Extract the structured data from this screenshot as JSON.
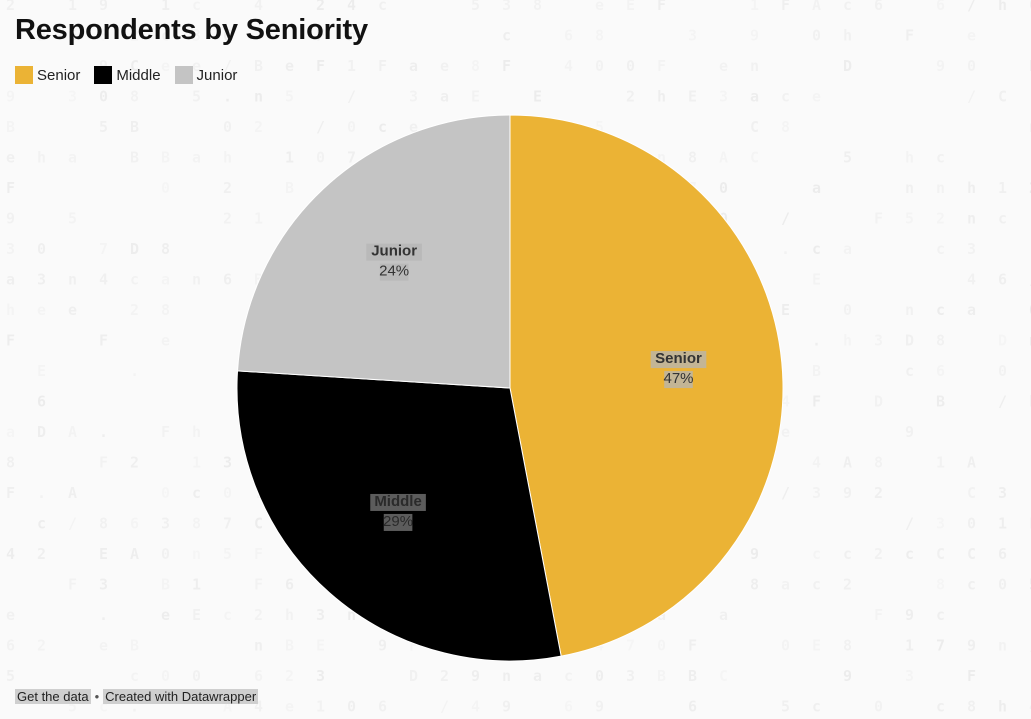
{
  "chart_data": {
    "type": "pie",
    "title": "Respondents by Seniority",
    "categories": [
      "Senior",
      "Middle",
      "Junior"
    ],
    "values": [
      47,
      29,
      24
    ],
    "value_suffix": "%",
    "colors": [
      "#ebb335",
      "#000000",
      "#c4c4c4"
    ],
    "legend": "top-left",
    "start_angle_deg": 0,
    "direction": "clockwise"
  },
  "legend": {
    "items": [
      {
        "label": "Senior",
        "color": "#ebb335"
      },
      {
        "label": "Middle",
        "color": "#000000"
      },
      {
        "label": "Junior",
        "color": "#c4c4c4"
      }
    ]
  },
  "footer": {
    "get_data": "Get the data",
    "separator": "•",
    "created_with": "Created with Datawrapper"
  }
}
